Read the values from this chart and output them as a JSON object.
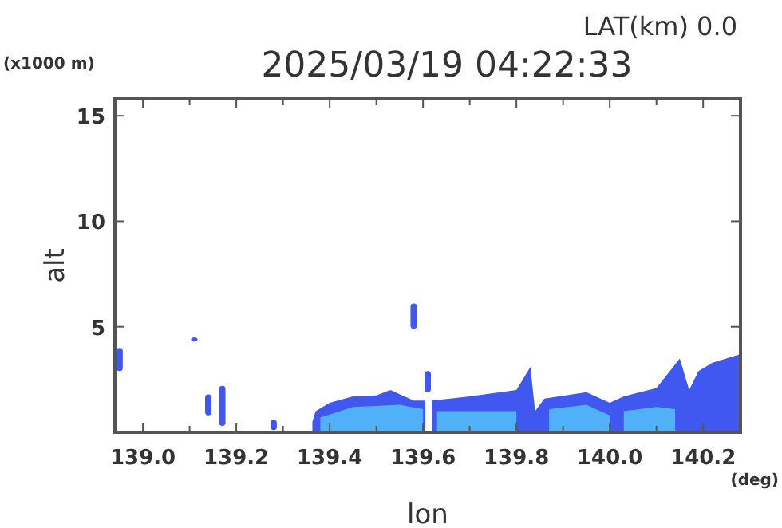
{
  "chart_data": {
    "type": "area",
    "title": "2025/03/19 04:22:33",
    "subtitle": "LAT(km) 0.0",
    "xlabel": "lon",
    "ylabel": "alt",
    "annotations": [
      "(x1000 m)",
      "(deg)"
    ],
    "xlim": [
      138.94,
      140.28
    ],
    "ylim": [
      0,
      15.8
    ],
    "xticks": [
      {
        "value": 139.0,
        "label": "139.0"
      },
      {
        "value": 139.1,
        "label": null
      },
      {
        "value": 139.2,
        "label": "139.2"
      },
      {
        "value": 139.3,
        "label": null
      },
      {
        "value": 139.4,
        "label": "139.4"
      },
      {
        "value": 139.5,
        "label": null
      },
      {
        "value": 139.6,
        "label": "139.6"
      },
      {
        "value": 139.7,
        "label": null
      },
      {
        "value": 139.8,
        "label": "139.8"
      },
      {
        "value": 139.9,
        "label": null
      },
      {
        "value": 140.0,
        "label": "140.0"
      },
      {
        "value": 140.1,
        "label": null
      },
      {
        "value": 140.2,
        "label": "140.2"
      }
    ],
    "yticks": [
      5,
      10,
      15
    ],
    "series": [
      {
        "color": "#4058f0",
        "x": [
          139.363,
          139.37,
          139.4,
          139.45,
          139.5,
          139.53,
          139.58,
          139.605
        ],
        "values": [
          0.5,
          1.0,
          1.4,
          1.7,
          1.75,
          2.0,
          1.5,
          1.5
        ]
      },
      {
        "color": "#4058f0",
        "x": [
          139.62,
          139.7,
          139.8,
          139.83,
          139.84,
          139.86,
          139.95,
          140.0,
          140.03,
          140.1,
          140.15,
          140.17,
          140.19,
          140.22,
          140.28
        ],
        "values": [
          1.5,
          1.7,
          2.0,
          3.1,
          1.0,
          1.6,
          1.9,
          1.4,
          1.7,
          2.1,
          3.5,
          2.0,
          2.9,
          3.3,
          3.7
        ]
      },
      {
        "color": "#50b0f8",
        "x": [
          139.38,
          139.45,
          139.55,
          139.6
        ],
        "values": [
          0.7,
          1.2,
          1.3,
          1.1
        ]
      },
      {
        "color": "#50b0f8",
        "x": [
          139.63,
          139.7,
          139.8
        ],
        "values": [
          1.0,
          1.0,
          1.0
        ]
      },
      {
        "color": "#50b0f8",
        "x": [
          139.87,
          139.95,
          140.0
        ],
        "values": [
          1.1,
          1.3,
          0.8
        ]
      },
      {
        "color": "#50b0f8",
        "x": [
          140.03,
          140.1,
          140.14
        ],
        "values": [
          1.0,
          1.2,
          1.1
        ]
      },
      {
        "type": "bar",
        "color": "#4058f0",
        "x": [
          138.95,
          139.11,
          139.14,
          139.17,
          139.28,
          139.58,
          139.61
        ],
        "base": [
          2.9,
          4.3,
          0.8,
          0.3,
          0.1,
          4.9,
          1.9
        ],
        "values": [
          1.1,
          0.2,
          1.0,
          1.9,
          0.5,
          1.2,
          1.0
        ]
      }
    ]
  }
}
